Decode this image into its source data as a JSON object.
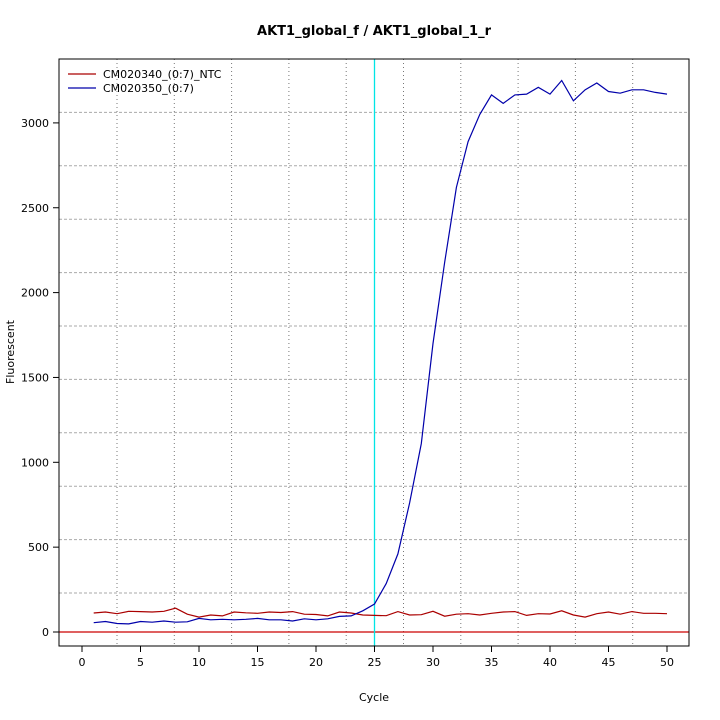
{
  "chart_data": {
    "type": "line",
    "title": "AKT1_global_f / AKT1_global_1_r",
    "xlabel": "Cycle",
    "ylabel": "Fluorescent",
    "xlim": [
      -2,
      52
    ],
    "ylim": [
      -80,
      3380
    ],
    "x_ticks": [
      0,
      5,
      10,
      15,
      20,
      25,
      30,
      35,
      40,
      45,
      50
    ],
    "y_ticks": [
      0,
      500,
      1000,
      1500,
      2000,
      2500,
      3000
    ],
    "grid": true,
    "legend_position": "top-left",
    "threshold_line": {
      "y": 0,
      "color": "#cc0000"
    },
    "cycle_marker": {
      "x": 25,
      "color": "#00e5e5"
    },
    "series": [
      {
        "name": "CM020340_(0:7)_NTC",
        "color": "#aa0000",
        "x": [
          1,
          2,
          3,
          4,
          5,
          6,
          7,
          8,
          9,
          10,
          11,
          12,
          13,
          14,
          15,
          16,
          17,
          18,
          19,
          20,
          21,
          22,
          23,
          24,
          25,
          26,
          27,
          28,
          29,
          30,
          31,
          32,
          33,
          34,
          35,
          36,
          37,
          38,
          39,
          40,
          41,
          42,
          43,
          44,
          45,
          46,
          47,
          48,
          49,
          50
        ],
        "values": [
          112,
          118,
          108,
          122,
          120,
          118,
          122,
          140,
          105,
          88,
          100,
          95,
          118,
          113,
          110,
          118,
          115,
          120,
          105,
          103,
          95,
          118,
          112,
          100,
          98,
          96,
          120,
          100,
          102,
          122,
          93,
          105,
          108,
          100,
          110,
          118,
          120,
          98,
          108,
          106,
          125,
          100,
          88,
          108,
          118,
          105,
          120,
          110,
          110,
          108
        ]
      },
      {
        "name": "CM020350_(0:7)",
        "color": "#0000aa",
        "x": [
          1,
          2,
          3,
          4,
          5,
          6,
          7,
          8,
          9,
          10,
          11,
          12,
          13,
          14,
          15,
          16,
          17,
          18,
          19,
          20,
          21,
          22,
          23,
          24,
          25,
          26,
          27,
          28,
          29,
          30,
          31,
          32,
          33,
          34,
          35,
          36,
          37,
          38,
          39,
          40,
          41,
          42,
          43,
          44,
          45,
          46,
          47,
          48,
          49,
          50
        ],
        "values": [
          55,
          62,
          50,
          48,
          62,
          58,
          65,
          58,
          60,
          80,
          72,
          75,
          72,
          75,
          80,
          72,
          72,
          65,
          78,
          72,
          78,
          92,
          95,
          125,
          165,
          285,
          460,
          760,
          1110,
          1700,
          2180,
          2620,
          2890,
          3050,
          3165,
          3115,
          3165,
          3170,
          3210,
          3170,
          3250,
          3130,
          3195,
          3235,
          3185,
          3175,
          3195,
          3195,
          3180,
          3170
        ]
      }
    ]
  }
}
